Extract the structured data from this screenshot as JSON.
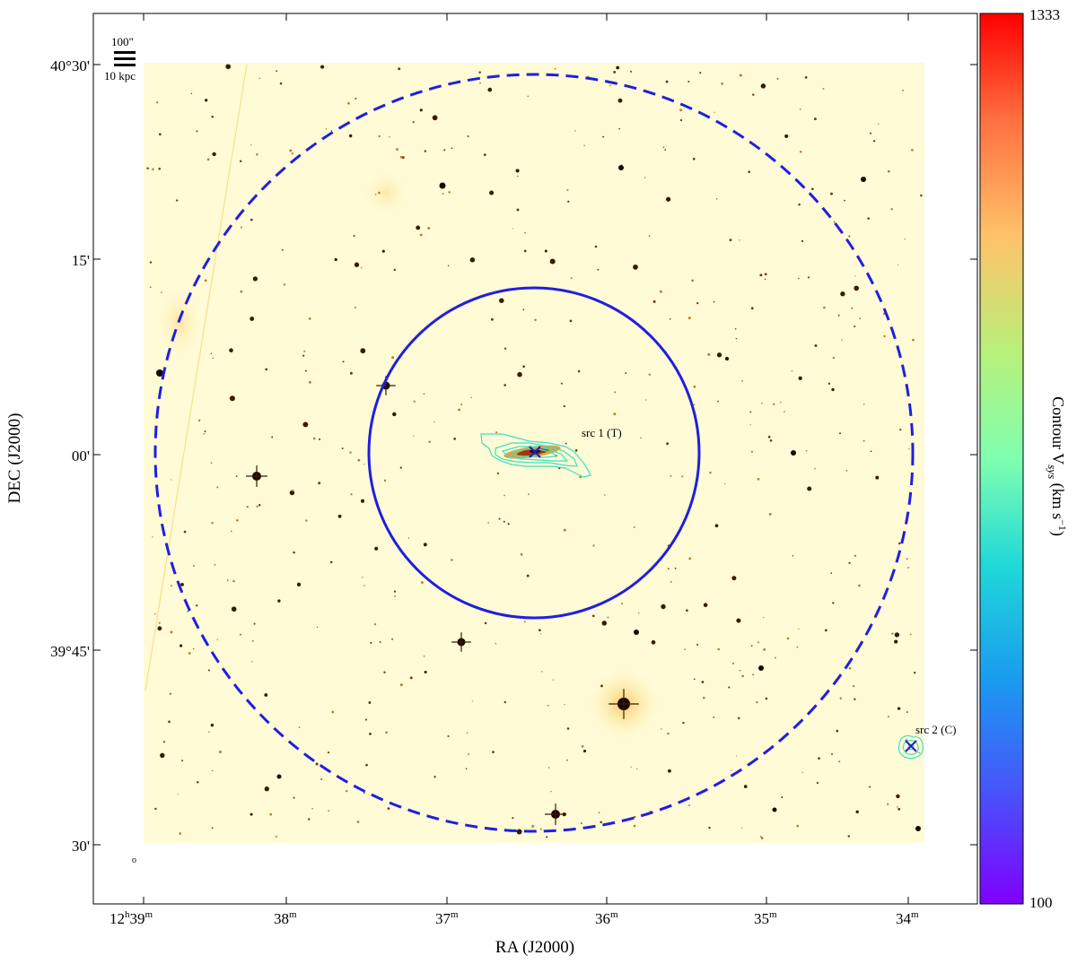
{
  "figure": {
    "ra_axis_title": "RA (J2000)",
    "dec_axis_title": "DEC (J2000)",
    "ra_ticks": [
      {
        "label_main": "12",
        "sup1": "h",
        "label_mid": "39",
        "sup2": "m"
      },
      {
        "label_main": "38",
        "sup1": "m"
      },
      {
        "label_main": "37",
        "sup1": "m"
      },
      {
        "label_main": "36",
        "sup1": "m"
      },
      {
        "label_main": "35",
        "sup1": "m"
      },
      {
        "label_main": "34",
        "sup1": "m"
      }
    ],
    "dec_ticks": [
      "40°30'",
      "15'",
      "00'",
      "39°45'",
      "30'"
    ],
    "scale_bar": {
      "angular": "100\"",
      "physical": "10 kpc"
    },
    "sources": [
      {
        "label": "src 1 (T)"
      },
      {
        "label": "src 2 (C)"
      }
    ],
    "beam_symbol": "o"
  },
  "colorbar": {
    "max_label": "1333",
    "min_label": "100",
    "title_prefix": "Contour V",
    "title_sub": "sys",
    "title_unit_open": " (km s",
    "title_unit_exp": "−1",
    "title_unit_close": ")",
    "colormap": "rainbow"
  },
  "colors": {
    "background_field": "#fffbd6",
    "circle": "#1f1fe0",
    "contour": "#3ee0c0",
    "marker": "#1a1acc"
  }
}
